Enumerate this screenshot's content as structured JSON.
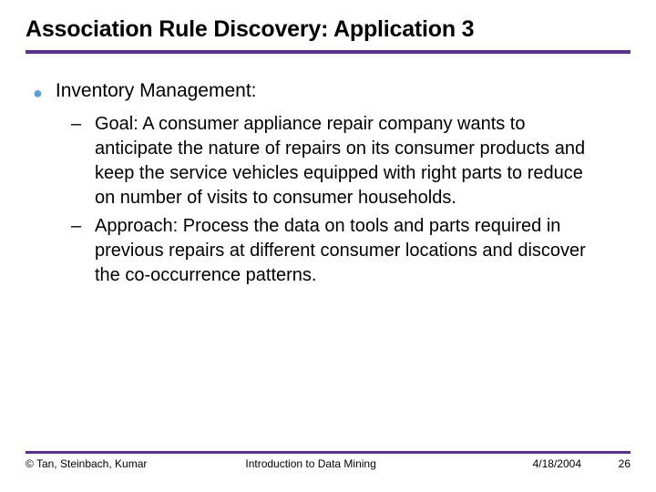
{
  "colors": {
    "rule": "#5a318c",
    "bullet": "#5aa0d4",
    "background": "#ffffff",
    "text": "#000000"
  },
  "title": "Association Rule Discovery: Application 3",
  "main_bullet": "Inventory Management:",
  "sub_bullets": [
    "Goal: A consumer appliance repair company wants to anticipate the nature of repairs on its consumer products and keep the service vehicles equipped with right parts to reduce on number of visits to consumer households.",
    "Approach: Process the data on tools and parts required in previous repairs at different consumer locations and discover the co-occurrence patterns."
  ],
  "footer": {
    "authors": "© Tan, Steinbach, Kumar",
    "course": "Introduction to Data Mining",
    "date": "4/18/2004",
    "page": "26"
  },
  "typography": {
    "title_fontsize": 25,
    "body_fontsize": 21,
    "sub_fontsize": 20,
    "footer_fontsize": 12,
    "title_weight": "bold"
  }
}
